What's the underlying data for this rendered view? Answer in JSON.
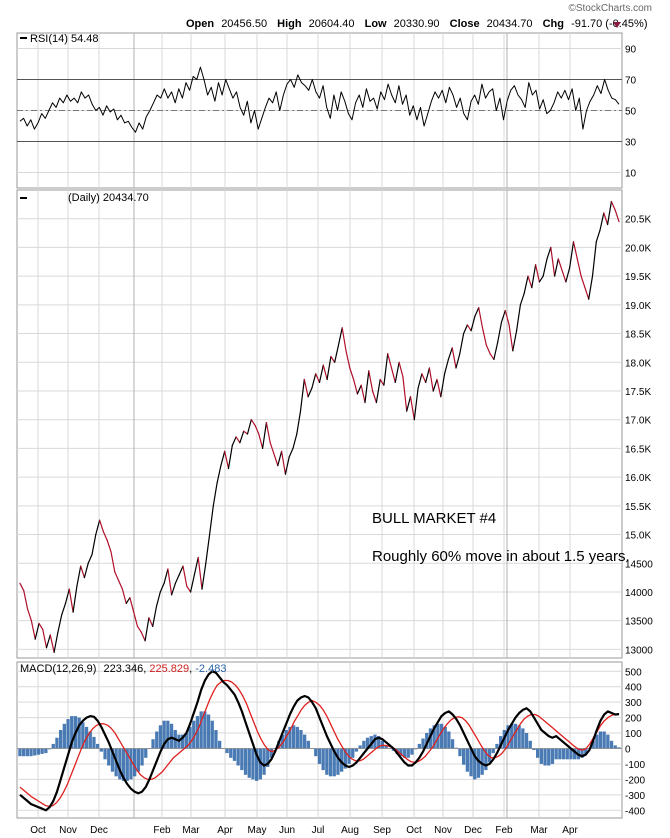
{
  "header": {
    "watermark": "©StockCharts.com",
    "open_label": "Open",
    "open_value": "20456.50",
    "high_label": "High",
    "high_value": "20604.40",
    "low_label": "Low",
    "low_value": "20330.90",
    "close_label": "Close",
    "close_value": "20434.70",
    "chg_label": "Chg",
    "chg_value": "-91.70 (-0.45%)",
    "chg_color": "#c62828"
  },
  "months": [
    "Oct",
    "Nov",
    "Dec",
    "Feb",
    "Mar",
    "Apr",
    "May",
    "Jun",
    "Jul",
    "Aug",
    "Sep",
    "Oct",
    "Nov",
    "Dec",
    "Feb",
    "Mar",
    "Apr"
  ],
  "colors": {
    "price_up": "#000000",
    "price_down": "#b0102a",
    "macd_line": "#000000",
    "signal_line": "#e0201e",
    "histogram": "#2c64a8",
    "grid": "#d9d9d9",
    "frame": "#999999"
  },
  "chart_data": [
    {
      "type": "line",
      "panel": "rsi",
      "title": "RSI(14) 54.48",
      "ylim": [
        0,
        100
      ],
      "y_ticks": [
        10,
        30,
        50,
        70,
        90
      ],
      "overbought": 70,
      "oversold": 30,
      "midline": 50,
      "series": [
        {
          "name": "RSI(14)",
          "last": 54.48,
          "values": [
            43,
            45,
            40,
            44,
            38,
            42,
            48,
            45,
            50,
            55,
            52,
            58,
            55,
            60,
            56,
            58,
            55,
            62,
            58,
            60,
            54,
            50,
            52,
            47,
            53,
            49,
            51,
            44,
            47,
            42,
            43,
            39,
            36,
            42,
            38,
            46,
            50,
            55,
            60,
            58,
            64,
            58,
            62,
            55,
            64,
            58,
            68,
            63,
            72,
            70,
            78,
            70,
            60,
            65,
            56,
            68,
            60,
            70,
            64,
            58,
            62,
            52,
            47,
            56,
            42,
            50,
            38,
            45,
            52,
            58,
            55,
            62,
            50,
            60,
            67,
            70,
            65,
            73,
            68,
            66,
            63,
            70,
            62,
            58,
            66,
            52,
            45,
            60,
            50,
            62,
            56,
            48,
            44,
            55,
            60,
            52,
            64,
            56,
            58,
            51,
            62,
            57,
            67,
            60,
            55,
            66,
            54,
            60,
            47,
            53,
            44,
            52,
            40,
            48,
            56,
            62,
            58,
            63,
            55,
            65,
            60,
            52,
            58,
            48,
            44,
            56,
            60,
            54,
            67,
            58,
            62,
            64,
            50,
            58,
            44,
            56,
            63,
            66,
            60,
            57,
            52,
            68,
            60,
            63,
            51,
            57,
            48,
            50,
            55,
            62,
            58,
            63,
            57,
            64,
            50,
            58,
            38,
            50,
            56,
            60,
            66,
            61,
            70,
            63,
            58,
            57,
            54
          ]
        }
      ]
    },
    {
      "type": "line",
      "panel": "price",
      "title": "(Daily) 20434.70",
      "ylim": [
        12850,
        21000
      ],
      "y_ticks": [
        13000,
        13500,
        14000,
        14500,
        15000,
        15500,
        16000,
        16500,
        17000,
        17500,
        18000,
        18500,
        19000,
        19500,
        20000,
        20500
      ],
      "y_tick_labels": [
        "13000",
        "13500",
        "14000",
        "14500",
        "15.0K",
        "15.5K",
        "16.0K",
        "16.5K",
        "17.0K",
        "17.5K",
        "18.0K",
        "18.5K",
        "19.0K",
        "19.5K",
        "20.0K",
        "20.5K"
      ],
      "annotations": [
        "BULL MARKET #4",
        "Roughly 60% move in about 1.5 years."
      ],
      "series": [
        {
          "name": "Close",
          "last": 20434.7,
          "values": [
            14150,
            14020,
            13700,
            13500,
            13180,
            13450,
            13350,
            13030,
            13250,
            12950,
            13300,
            13600,
            13800,
            14050,
            13650,
            14100,
            14450,
            14250,
            14500,
            14650,
            15000,
            15250,
            15050,
            14900,
            14700,
            14350,
            14200,
            14050,
            13800,
            13900,
            13650,
            13400,
            13300,
            13150,
            13550,
            13400,
            13750,
            14000,
            14150,
            14400,
            13950,
            14150,
            14300,
            14450,
            14100,
            14000,
            14300,
            14600,
            14050,
            14500,
            15000,
            15500,
            15900,
            16200,
            16450,
            16150,
            16550,
            16700,
            16600,
            16800,
            16750,
            17000,
            16900,
            16750,
            16500,
            16950,
            16600,
            16400,
            16200,
            16450,
            16050,
            16350,
            16500,
            16750,
            17150,
            17700,
            17400,
            17550,
            17800,
            17650,
            17950,
            17700,
            18100,
            18000,
            18300,
            18600,
            18200,
            17900,
            17700,
            17450,
            17600,
            17300,
            17850,
            17500,
            17300,
            17700,
            17600,
            18150,
            17900,
            17650,
            18000,
            17750,
            17150,
            17400,
            17000,
            17550,
            17800,
            17650,
            17900,
            17500,
            17700,
            17400,
            17800,
            18050,
            18250,
            17900,
            18150,
            18500,
            18650,
            18550,
            18800,
            18950,
            18600,
            18300,
            18150,
            18050,
            18350,
            18700,
            18900,
            18650,
            18200,
            18550,
            19000,
            19200,
            19500,
            19300,
            19700,
            19400,
            19500,
            19800,
            20000,
            19500,
            19800,
            19600,
            19400,
            19650,
            20100,
            19800,
            19500,
            19300,
            19100,
            19500,
            20100,
            20300,
            20600,
            20400,
            20800,
            20650,
            20450
          ]
        }
      ]
    },
    {
      "type": "line",
      "panel": "macd",
      "title": "MACD(12,26,9)",
      "macd_value": "223.346",
      "signal_value": "225.829",
      "hist_value": "-2.483",
      "ylim": [
        -450,
        560
      ],
      "y_ticks": [
        -400,
        -300,
        -200,
        -100,
        0,
        100,
        200,
        300,
        400,
        500
      ],
      "series": [
        {
          "name": "MACD",
          "values": [
            -300,
            -320,
            -340,
            -360,
            -370,
            -380,
            -390,
            -400,
            -380,
            -340,
            -280,
            -200,
            -120,
            -40,
            40,
            100,
            150,
            180,
            200,
            210,
            205,
            180,
            140,
            90,
            40,
            -20,
            -80,
            -140,
            -190,
            -230,
            -260,
            -280,
            -290,
            -280,
            -250,
            -200,
            -140,
            -80,
            -20,
            30,
            60,
            70,
            60,
            50,
            70,
            100,
            160,
            230,
            300,
            380,
            440,
            480,
            500,
            490,
            460,
            430,
            410,
            380,
            350,
            300,
            240,
            170,
            100,
            30,
            -40,
            -90,
            -110,
            -100,
            -70,
            -20,
            40,
            100,
            160,
            220,
            270,
            310,
            330,
            340,
            330,
            300,
            260,
            200,
            140,
            80,
            30,
            -20,
            -60,
            -90,
            -110,
            -120,
            -110,
            -90,
            -60,
            -30,
            0,
            30,
            60,
            70,
            60,
            40,
            20,
            0,
            -30,
            -60,
            -90,
            -110,
            -110,
            -90,
            -60,
            -20,
            30,
            80,
            130,
            170,
            210,
            230,
            240,
            220,
            190,
            150,
            100,
            50,
            0,
            -50,
            -80,
            -100,
            -110,
            -100,
            -70,
            -30,
            20,
            70,
            120,
            160,
            200,
            230,
            250,
            260,
            240,
            200,
            160,
            120,
            100,
            80,
            70,
            80,
            60,
            40,
            20,
            0,
            -20,
            -40,
            -50,
            -40,
            -10,
            50,
            120,
            180,
            220,
            240,
            230,
            220,
            223
          ]
        },
        {
          "name": "Signal",
          "values": [
            -250,
            -270,
            -290,
            -310,
            -325,
            -340,
            -355,
            -370,
            -375,
            -370,
            -350,
            -320,
            -280,
            -230,
            -170,
            -110,
            -50,
            10,
            60,
            100,
            130,
            150,
            160,
            160,
            150,
            130,
            100,
            60,
            20,
            -20,
            -60,
            -100,
            -140,
            -170,
            -190,
            -200,
            -200,
            -190,
            -170,
            -150,
            -120,
            -90,
            -60,
            -40,
            -20,
            0,
            20,
            50,
            90,
            140,
            200,
            260,
            320,
            370,
            410,
            430,
            440,
            440,
            430,
            410,
            380,
            340,
            290,
            230,
            170,
            110,
            60,
            20,
            -10,
            -20,
            -10,
            10,
            40,
            80,
            120,
            170,
            210,
            250,
            280,
            300,
            310,
            300,
            280,
            250,
            210,
            160,
            110,
            60,
            20,
            -20,
            -50,
            -70,
            -80,
            -80,
            -70,
            -50,
            -30,
            -10,
            10,
            20,
            20,
            15,
            5,
            -10,
            -30,
            -50,
            -70,
            -85,
            -90,
            -85,
            -70,
            -50,
            -20,
            10,
            50,
            90,
            130,
            160,
            185,
            200,
            205,
            200,
            180,
            150,
            110,
            70,
            30,
            -10,
            -40,
            -60,
            -60,
            -50,
            -30,
            0,
            40,
            80,
            120,
            160,
            190,
            210,
            220,
            220,
            210,
            190,
            170,
            150,
            130,
            110,
            90,
            70,
            50,
            30,
            10,
            -5,
            -10,
            0,
            30,
            70,
            110,
            150,
            180,
            200,
            215,
            220,
            226
          ]
        }
      ]
    }
  ]
}
